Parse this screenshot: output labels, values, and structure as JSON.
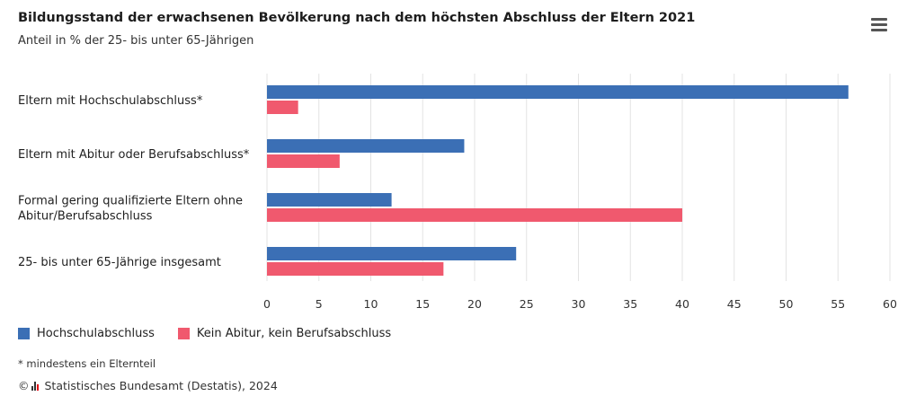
{
  "header": {
    "title": "Bildungsstand der erwachsenen Bevölkerung nach dem höchsten Abschluss der Eltern 2021",
    "subtitle": "Anteil in % der 25- bis unter 65-Jährigen",
    "menu_icon": "hamburger-menu-icon"
  },
  "chart_data": {
    "type": "bar",
    "orientation": "horizontal",
    "categories": [
      "Eltern mit Hochschulabschluss*",
      "Eltern mit Abitur oder Berufsabschluss*",
      "Formal gering qualifizierte Eltern ohne Abitur/Berufsabschluss",
      "25- bis unter 65-Jährige insgesamt"
    ],
    "category_lines": [
      [
        "Eltern mit Hochschulabschluss*"
      ],
      [
        "Eltern mit Abitur oder Berufsabschluss*"
      ],
      [
        "Formal gering qualifizierte Eltern ohne",
        "Abitur/Berufsabschluss"
      ],
      [
        "25- bis unter 65-Jährige insgesamt"
      ]
    ],
    "series": [
      {
        "name": "Hochschulabschluss",
        "color": "#3b6fb5",
        "values": [
          56,
          19,
          12,
          24
        ]
      },
      {
        "name": "Kein Abitur, kein Berufsabschluss",
        "color": "#f0596e",
        "values": [
          3,
          7,
          40,
          17
        ]
      }
    ],
    "xlim": [
      0,
      60
    ],
    "xticks": [
      "0",
      "5",
      "10",
      "15",
      "20",
      "25",
      "30",
      "35",
      "40",
      "45",
      "50",
      "55",
      "60"
    ],
    "grid": true,
    "legend_position": "bottom-left"
  },
  "footnote": "* mindestens ein Elternteil",
  "source": {
    "prefix": "©",
    "text": "Statistisches Bundesamt (Destatis), 2024",
    "logo": "destatis-logo-icon"
  }
}
